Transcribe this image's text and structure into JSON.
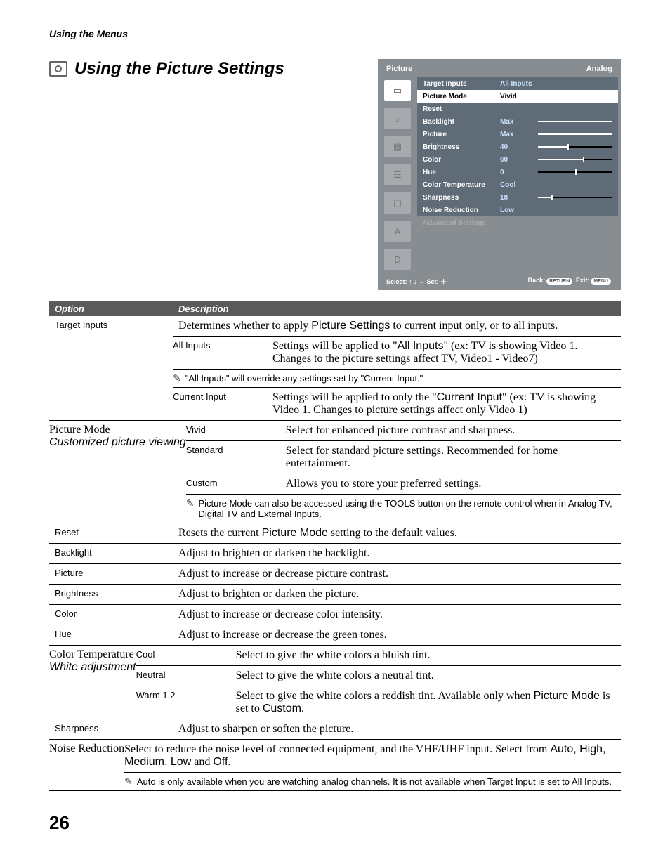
{
  "header_breadcrumb": "Using the Menus",
  "page_title": "Using the Picture Settings",
  "page_number": "26",
  "osd": {
    "title": "Picture",
    "mode": "Analog",
    "rows": [
      {
        "label": "Target Inputs",
        "value": "All Inputs",
        "highlight": true,
        "selval": true
      },
      {
        "label": "Picture Mode",
        "value": "Vivid",
        "selrow": true
      },
      {
        "label": "Reset",
        "value": "",
        "highlight": true
      },
      {
        "label": "Backlight",
        "value": "Max",
        "bar": "max",
        "highlight": true,
        "selval": true
      },
      {
        "label": "Picture",
        "value": "Max",
        "bar": "max",
        "highlight": true,
        "selval": true
      },
      {
        "label": "Brightness",
        "value": "40",
        "bar": "p40",
        "tick": 40,
        "highlight": true,
        "selval": true
      },
      {
        "label": "Color",
        "value": "60",
        "bar": "p60",
        "tick": 60,
        "highlight": true,
        "selval": true
      },
      {
        "label": "Hue",
        "value": "0",
        "bar": "p0",
        "tick": 50,
        "highlight": true,
        "selval": true
      },
      {
        "label": "Color Temperature",
        "value": "Cool",
        "highlight": true,
        "selval": true
      },
      {
        "label": "Sharpness",
        "value": "18",
        "bar": "p18",
        "tick": 18,
        "highlight": true,
        "selval": true
      },
      {
        "label": "Noise Reduction",
        "value": "Low",
        "highlight": true,
        "selval": true
      },
      {
        "label": "Advanced Settings",
        "value": "",
        "disabled": true
      }
    ],
    "footer_left": "Select: ↑ ↓ → Set: ＋",
    "footer_right_back": "Back:",
    "footer_right_back_pill": "RETURN",
    "footer_right_exit": "Exit:",
    "footer_right_exit_pill": "MENU"
  },
  "table_header_option": "Option",
  "table_header_description": "Description",
  "rows": {
    "target_inputs": {
      "label": "Target Inputs",
      "intro_a": "Determines whether to apply ",
      "intro_b": "Picture Settings",
      "intro_c": " to current input only, or to all inputs.",
      "all_inputs_label": "All Inputs",
      "all_inputs_desc_a": "Settings will be applied to \"",
      "all_inputs_desc_b": "All Inputs",
      "all_inputs_desc_c": "\" (ex: TV is showing Video 1. Changes to the picture settings affect TV, Video1 - Video7)",
      "note": "\"All Inputs\" will override any settings set by \"Current Input.\"",
      "current_input_label": "Current Input",
      "current_input_desc_a": "Settings will be applied to only the \"",
      "current_input_desc_b": "Current Input",
      "current_input_desc_c": "\" (ex: TV is showing Video 1. Changes to picture settings affect only Video 1)"
    },
    "picture_mode": {
      "label_a": "Picture Mode",
      "label_b": "Customized picture viewing",
      "vivid_label": "Vivid",
      "vivid_desc": "Select for enhanced picture contrast and sharpness.",
      "standard_label": "Standard",
      "standard_desc": "Select for standard picture settings. Recommended for home entertainment.",
      "custom_label": "Custom",
      "custom_desc": "Allows you to store your preferred settings.",
      "note": "Picture Mode can also be accessed using the TOOLS button on the remote control when in Analog TV, Digital TV and External Inputs."
    },
    "reset": {
      "label": "Reset",
      "desc_a": "Resets the current ",
      "desc_b": "Picture Mode",
      "desc_c": " setting to the default values."
    },
    "backlight": {
      "label": "Backlight",
      "desc": "Adjust to brighten or darken the backlight."
    },
    "picture": {
      "label": "Picture",
      "desc": "Adjust to increase or decrease picture contrast."
    },
    "brightness": {
      "label": "Brightness",
      "desc": "Adjust to brighten or darken the picture."
    },
    "color": {
      "label": "Color",
      "desc": "Adjust to increase or decrease color intensity."
    },
    "hue": {
      "label": "Hue",
      "desc": "Adjust to increase or decrease the green tones."
    },
    "coltemp": {
      "label_a": "Color Temperature",
      "label_b": "White adjustment",
      "cool_label": "Cool",
      "cool_desc": "Select to give the white colors a bluish tint.",
      "neutral_label": "Neutral",
      "neutral_desc": "Select to give the white colors a neutral tint.",
      "warm_label": "Warm 1,2",
      "warm_desc_a": "Select to give the white colors a reddish tint. Available only when ",
      "warm_desc_b": "Picture Mode",
      "warm_desc_c": " is set to ",
      "warm_desc_d": "Custom",
      "warm_desc_e": "."
    },
    "sharpness": {
      "label": "Sharpness",
      "desc": "Adjust to sharpen or soften the picture."
    },
    "noise": {
      "label": "Noise Reduction",
      "desc_a": "Select to reduce the noise level of connected equipment, and the VHF/UHF input. Select from ",
      "desc_b": "Auto, High, Medium, Low",
      "desc_c": " and ",
      "desc_d": "Off",
      "desc_e": ".",
      "note": "Auto is only available when you are watching analog channels. It is not available when Target Input is set to All Inputs."
    }
  }
}
